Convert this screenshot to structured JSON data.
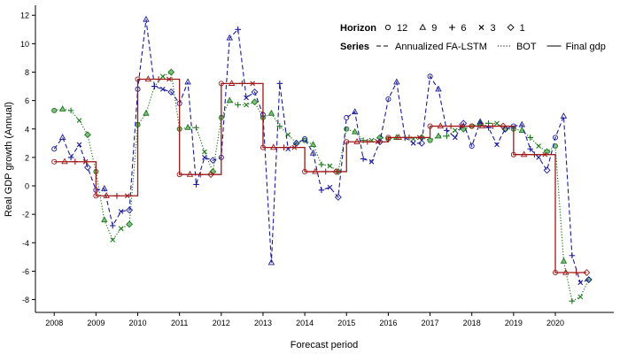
{
  "chart_data": {
    "type": "line",
    "xlabel": "Forecast period",
    "ylabel": "Real GDP growth (Annual)",
    "xlim": [
      2007.55,
      2021.4
    ],
    "ylim": [
      -8.9,
      12.7
    ],
    "x_ticks": [
      2008,
      2009,
      2010,
      2011,
      2012,
      2013,
      2014,
      2015,
      2016,
      2017,
      2018,
      2019,
      2020
    ],
    "y_ticks": [
      -8,
      -6,
      -4,
      -2,
      0,
      2,
      4,
      6,
      8,
      10,
      12
    ],
    "grid": false,
    "legend_horizon": {
      "title": "Horizon",
      "items": [
        {
          "label": "12",
          "marker": "circle"
        },
        {
          "label": "9",
          "marker": "triangle"
        },
        {
          "label": "6",
          "marker": "plus"
        },
        {
          "label": "3",
          "marker": "cross"
        },
        {
          "label": "1",
          "marker": "diamond"
        }
      ]
    },
    "legend_series": {
      "title": "Series",
      "items": [
        {
          "label": "Annualized FA-LSTM",
          "dash": "dashed",
          "color": "#1a1aa0"
        },
        {
          "label": "BOT",
          "dash": "dotted",
          "color": "#1e7a1e"
        },
        {
          "label": "Final gdp",
          "dash": "solid",
          "color": "#a01818"
        }
      ]
    },
    "colors": {
      "fa_lstm": "#1a1aa0",
      "bot": "#1e7a1e",
      "final": "#a01818",
      "bot_fill": "#7fbf7f"
    },
    "series": [
      {
        "name": "Final gdp",
        "key": "final",
        "points": [
          [
            2008.0,
            1.7,
            "circle"
          ],
          [
            2008.25,
            1.7,
            "triangle"
          ],
          [
            2008.5,
            1.7,
            "plus"
          ],
          [
            2008.75,
            1.7,
            "cross"
          ],
          [
            2009.0,
            -0.7,
            "circle"
          ],
          [
            2009.25,
            -0.7,
            "triangle"
          ],
          [
            2009.5,
            -0.7,
            "plus"
          ],
          [
            2009.75,
            -0.7,
            "cross"
          ],
          [
            2010.0,
            7.5,
            "circle"
          ],
          [
            2010.25,
            7.5,
            "triangle"
          ],
          [
            2010.5,
            7.5,
            "plus"
          ],
          [
            2010.75,
            7.5,
            "cross"
          ],
          [
            2011.0,
            0.8,
            "circle"
          ],
          [
            2011.25,
            0.8,
            "triangle"
          ],
          [
            2011.5,
            0.8,
            "plus"
          ],
          [
            2011.75,
            0.8,
            "diamond"
          ],
          [
            2012.0,
            7.2,
            "circle"
          ],
          [
            2012.25,
            7.2,
            "triangle"
          ],
          [
            2012.5,
            7.2,
            "plus"
          ],
          [
            2012.75,
            7.2,
            "cross"
          ],
          [
            2013.0,
            2.7,
            "circle"
          ],
          [
            2013.25,
            2.7,
            "triangle"
          ],
          [
            2013.5,
            2.7,
            "plus"
          ],
          [
            2013.75,
            2.7,
            "cross"
          ],
          [
            2014.0,
            1.0,
            "circle"
          ],
          [
            2014.25,
            1.0,
            "triangle"
          ],
          [
            2014.5,
            1.0,
            "plus"
          ],
          [
            2014.75,
            1.0,
            "diamond"
          ],
          [
            2015.0,
            3.1,
            "circle"
          ],
          [
            2015.25,
            3.1,
            "triangle"
          ],
          [
            2015.5,
            3.1,
            "plus"
          ],
          [
            2015.75,
            3.1,
            "cross"
          ],
          [
            2016.0,
            3.4,
            "circle"
          ],
          [
            2016.25,
            3.4,
            "triangle"
          ],
          [
            2016.5,
            3.4,
            "plus"
          ],
          [
            2016.75,
            3.4,
            "cross"
          ],
          [
            2017.0,
            4.2,
            "circle"
          ],
          [
            2017.25,
            4.2,
            "triangle"
          ],
          [
            2017.5,
            4.2,
            "plus"
          ],
          [
            2017.75,
            4.2,
            "cross"
          ],
          [
            2018.0,
            4.2,
            "circle"
          ],
          [
            2018.25,
            4.2,
            "triangle"
          ],
          [
            2018.5,
            4.2,
            "plus"
          ],
          [
            2018.75,
            4.2,
            "diamond"
          ],
          [
            2019.0,
            2.2,
            "circle"
          ],
          [
            2019.25,
            2.2,
            "triangle"
          ],
          [
            2019.5,
            2.2,
            "plus"
          ],
          [
            2019.75,
            2.2,
            "cross"
          ],
          [
            2020.0,
            -6.1,
            "circle"
          ],
          [
            2020.25,
            -6.1,
            "triangle"
          ],
          [
            2020.5,
            -6.1,
            "plus"
          ],
          [
            2020.75,
            -6.1,
            "diamond"
          ]
        ]
      },
      {
        "name": "Annualized FA-LSTM",
        "key": "fa_lstm",
        "points": [
          [
            2008.0,
            2.6,
            "circle"
          ],
          [
            2008.2,
            3.4,
            "triangle"
          ],
          [
            2008.4,
            2.0,
            "plus"
          ],
          [
            2008.6,
            2.9,
            "cross"
          ],
          [
            2008.8,
            1.3,
            "diamond"
          ],
          [
            2009.0,
            -0.3,
            "circle"
          ],
          [
            2009.2,
            -0.2,
            "triangle"
          ],
          [
            2009.4,
            -2.8,
            "plus"
          ],
          [
            2009.6,
            -1.8,
            "cross"
          ],
          [
            2009.8,
            -1.7,
            "diamond"
          ],
          [
            2010.0,
            6.8,
            "circle"
          ],
          [
            2010.2,
            11.7,
            "triangle"
          ],
          [
            2010.4,
            7.0,
            "plus"
          ],
          [
            2010.6,
            6.8,
            "cross"
          ],
          [
            2010.8,
            6.6,
            "diamond"
          ],
          [
            2011.0,
            5.8,
            "circle"
          ],
          [
            2011.2,
            7.3,
            "triangle"
          ],
          [
            2011.4,
            0.1,
            "plus"
          ],
          [
            2011.6,
            2.0,
            "cross"
          ],
          [
            2011.8,
            1.8,
            "diamond"
          ],
          [
            2012.0,
            2.0,
            "circle"
          ],
          [
            2012.2,
            10.4,
            "triangle"
          ],
          [
            2012.4,
            11.0,
            "plus"
          ],
          [
            2012.6,
            6.2,
            "cross"
          ],
          [
            2012.8,
            6.6,
            "diamond"
          ],
          [
            2013.0,
            5.0,
            "circle"
          ],
          [
            2013.2,
            -5.4,
            "triangle"
          ],
          [
            2013.4,
            7.2,
            "plus"
          ],
          [
            2013.6,
            2.6,
            "cross"
          ],
          [
            2013.8,
            3.0,
            "diamond"
          ],
          [
            2014.0,
            3.3,
            "circle"
          ],
          [
            2014.2,
            2.3,
            "triangle"
          ],
          [
            2014.4,
            -0.3,
            "plus"
          ],
          [
            2014.6,
            -0.1,
            "cross"
          ],
          [
            2014.8,
            -0.8,
            "diamond"
          ],
          [
            2015.0,
            4.8,
            "circle"
          ],
          [
            2015.2,
            5.2,
            "triangle"
          ],
          [
            2015.4,
            1.9,
            "plus"
          ],
          [
            2015.6,
            1.7,
            "cross"
          ],
          [
            2015.8,
            3.1,
            "diamond"
          ],
          [
            2016.0,
            6.1,
            "circle"
          ],
          [
            2016.2,
            7.3,
            "triangle"
          ],
          [
            2016.4,
            3.4,
            "plus"
          ],
          [
            2016.6,
            3.0,
            "cross"
          ],
          [
            2016.8,
            3.0,
            "diamond"
          ],
          [
            2017.0,
            7.7,
            "circle"
          ],
          [
            2017.2,
            6.8,
            "triangle"
          ],
          [
            2017.4,
            3.9,
            "plus"
          ],
          [
            2017.6,
            3.4,
            "cross"
          ],
          [
            2017.8,
            4.4,
            "diamond"
          ],
          [
            2018.0,
            2.8,
            "circle"
          ],
          [
            2018.2,
            4.5,
            "triangle"
          ],
          [
            2018.4,
            4.1,
            "plus"
          ],
          [
            2018.6,
            2.9,
            "cross"
          ],
          [
            2018.8,
            4.0,
            "diamond"
          ],
          [
            2019.0,
            4.2,
            "circle"
          ],
          [
            2019.2,
            4.3,
            "triangle"
          ],
          [
            2019.4,
            2.6,
            "plus"
          ],
          [
            2019.6,
            2.0,
            "cross"
          ],
          [
            2019.8,
            1.1,
            "diamond"
          ],
          [
            2020.0,
            3.4,
            "circle"
          ],
          [
            2020.2,
            4.9,
            "triangle"
          ],
          [
            2020.4,
            -4.9,
            "plus"
          ],
          [
            2020.6,
            -6.8,
            "cross"
          ],
          [
            2020.8,
            -6.6,
            "diamond"
          ]
        ]
      },
      {
        "name": "BOT",
        "key": "bot",
        "points": [
          [
            2008.0,
            5.3,
            "circle"
          ],
          [
            2008.2,
            5.4,
            "triangle"
          ],
          [
            2008.4,
            5.3,
            "plus"
          ],
          [
            2008.6,
            4.6,
            "cross"
          ],
          [
            2008.8,
            3.6,
            "diamond"
          ],
          [
            2009.0,
            1.0,
            "circle"
          ],
          [
            2009.2,
            -2.4,
            "triangle"
          ],
          [
            2009.4,
            -3.8,
            "cross"
          ],
          [
            2009.6,
            -3.0,
            "cross"
          ],
          [
            2009.8,
            -2.7,
            "diamond"
          ],
          [
            2010.0,
            4.3,
            "circle"
          ],
          [
            2010.2,
            5.1,
            "triangle"
          ],
          [
            2010.4,
            7.0,
            "plus"
          ],
          [
            2010.6,
            7.7,
            "cross"
          ],
          [
            2010.8,
            8.0,
            "diamond"
          ],
          [
            2011.0,
            4.0,
            "circle"
          ],
          [
            2011.2,
            4.1,
            "triangle"
          ],
          [
            2011.4,
            4.1,
            "plus"
          ],
          [
            2011.6,
            2.4,
            "cross"
          ],
          [
            2011.8,
            1.0,
            "diamond"
          ],
          [
            2012.0,
            4.8,
            "circle"
          ],
          [
            2012.2,
            6.0,
            "triangle"
          ],
          [
            2012.4,
            5.7,
            "plus"
          ],
          [
            2012.6,
            5.7,
            "cross"
          ],
          [
            2012.8,
            5.9,
            "diamond"
          ],
          [
            2013.0,
            4.8,
            "circle"
          ],
          [
            2013.2,
            5.1,
            "triangle"
          ],
          [
            2013.4,
            4.2,
            "plus"
          ],
          [
            2013.6,
            3.6,
            "cross"
          ],
          [
            2013.8,
            3.0,
            "diamond"
          ],
          [
            2014.0,
            3.2,
            "circle"
          ],
          [
            2014.2,
            2.9,
            "triangle"
          ],
          [
            2014.4,
            1.5,
            "plus"
          ],
          [
            2014.6,
            1.4,
            "cross"
          ],
          [
            2014.8,
            1.0,
            "diamond"
          ],
          [
            2015.0,
            4.0,
            "circle"
          ],
          [
            2015.2,
            3.8,
            "triangle"
          ],
          [
            2015.4,
            3.2,
            "plus"
          ],
          [
            2015.6,
            3.2,
            "cross"
          ],
          [
            2015.8,
            3.4,
            "diamond"
          ],
          [
            2016.0,
            3.3,
            "circle"
          ],
          [
            2016.2,
            3.4,
            "triangle"
          ],
          [
            2016.4,
            3.4,
            "plus"
          ],
          [
            2016.6,
            3.3,
            "cross"
          ],
          [
            2016.8,
            3.4,
            "diamond"
          ],
          [
            2017.0,
            3.2,
            "circle"
          ],
          [
            2017.2,
            3.5,
            "triangle"
          ],
          [
            2017.4,
            3.5,
            "plus"
          ],
          [
            2017.6,
            3.9,
            "cross"
          ],
          [
            2017.8,
            4.0,
            "diamond"
          ],
          [
            2018.0,
            4.2,
            "circle"
          ],
          [
            2018.2,
            4.4,
            "triangle"
          ],
          [
            2018.4,
            4.4,
            "plus"
          ],
          [
            2018.6,
            4.4,
            "cross"
          ],
          [
            2018.8,
            4.0,
            "diamond"
          ],
          [
            2019.0,
            4.0,
            "circle"
          ],
          [
            2019.2,
            3.9,
            "triangle"
          ],
          [
            2019.4,
            3.4,
            "plus"
          ],
          [
            2019.6,
            2.8,
            "cross"
          ],
          [
            2019.8,
            2.4,
            "diamond"
          ],
          [
            2020.0,
            2.8,
            "circle"
          ],
          [
            2020.2,
            -5.3,
            "triangle"
          ],
          [
            2020.4,
            -8.1,
            "plus"
          ],
          [
            2020.6,
            -7.8,
            "cross"
          ],
          [
            2020.8,
            -6.6,
            "diamond"
          ]
        ]
      }
    ]
  }
}
